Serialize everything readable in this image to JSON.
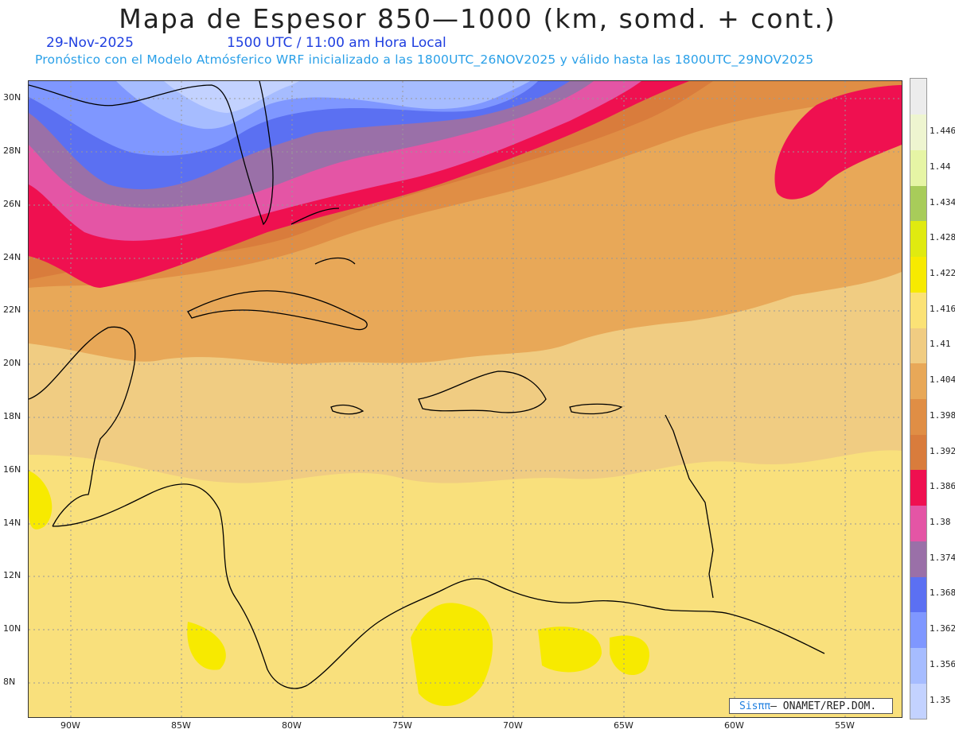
{
  "header": {
    "title": "Mapa de Espesor 850—1000 (km, somd. + cont.)",
    "date": "29-Nov-2025",
    "time": "1500 UTC / 11:00 am Hora Local",
    "subtitle": "Pronóstico con el Modelo Atmósferico WRF inicializado a las 1800UTC_26NOV2025 y válido hasta las  1800UTC_29NOV2025"
  },
  "credit": {
    "brand": "Sisππ",
    "org": "– ONAMET/REP.DOM."
  },
  "axes": {
    "lat_labels": [
      "30N",
      "28N",
      "26N",
      "24N",
      "22N",
      "20N",
      "18N",
      "16N",
      "14N",
      "12N",
      "10N",
      "8N"
    ],
    "lon_labels": [
      "90W",
      "85W",
      "80W",
      "75W",
      "70W",
      "65W",
      "60W",
      "55W"
    ]
  },
  "colorbar": {
    "colors": [
      "#c3d2ff",
      "#a6bcff",
      "#7f97ff",
      "#5b70f2",
      "#9a70a8",
      "#e455a5",
      "#ef1050",
      "#d97c3c",
      "#e08e45",
      "#e8a858",
      "#f0cc82",
      "#fbe276",
      "#f7ea00",
      "#e0ea10",
      "#a8cc5a",
      "#e6f5a5",
      "#eef5d0",
      "#ececec"
    ],
    "labels": [
      "1.35",
      "1.356",
      "1.362",
      "1.368",
      "1.374",
      "1.38",
      "1.386",
      "1.392",
      "1.398",
      "1.404",
      "1.41",
      "1.416",
      "1.422",
      "1.428",
      "1.434",
      "1.44",
      "1.446"
    ]
  }
}
